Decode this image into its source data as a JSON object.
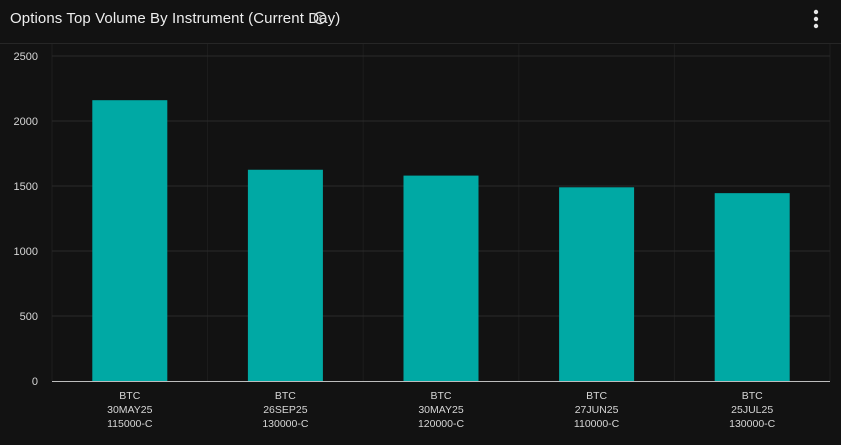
{
  "header": {
    "title": "Options Top Volume By Instrument (Current Day)",
    "info_icon": "info-icon",
    "menu_icon": "more-vertical-icon"
  },
  "colors": {
    "background": "#121212",
    "bar": "#00a9a4",
    "grid": "#2a2a2a",
    "text": "#e8e8e8"
  },
  "chart_data": {
    "type": "bar",
    "title": "Options Top Volume By Instrument (Current Day)",
    "xlabel": "",
    "ylabel": "",
    "categories": [
      [
        "BTC",
        "30MAY25",
        "115000-C"
      ],
      [
        "BTC",
        "26SEP25",
        "130000-C"
      ],
      [
        "BTC",
        "30MAY25",
        "120000-C"
      ],
      [
        "BTC",
        "27JUN25",
        "110000-C"
      ],
      [
        "BTC",
        "25JUL25",
        "130000-C"
      ]
    ],
    "values": [
      2160,
      1625,
      1580,
      1490,
      1445
    ],
    "ylim": [
      0,
      2500
    ],
    "yticks": [
      0,
      500,
      1000,
      1500,
      2000,
      2500
    ],
    "grid": true,
    "legend": "none"
  }
}
